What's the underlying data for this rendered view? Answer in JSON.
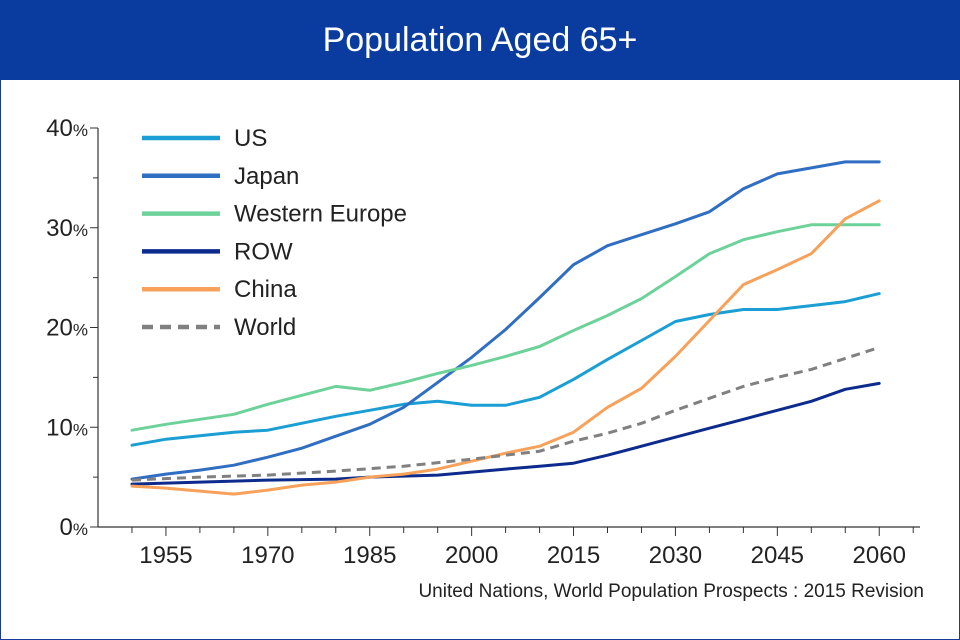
{
  "header": {
    "title": "Population Aged 65+"
  },
  "source": "United Nations, World Population Prospects : 2015 Revision",
  "chart_data": {
    "type": "line",
    "title": "Population Aged 65+",
    "xlabel": "",
    "ylabel": "",
    "xlim": [
      1945,
      2066
    ],
    "ylim": [
      0,
      40
    ],
    "x_ticks": [
      1955,
      1970,
      1985,
      2000,
      2015,
      2030,
      2045,
      2060
    ],
    "y_ticks": [
      {
        "value": 0,
        "label": "0%"
      },
      {
        "value": 10,
        "label": "10%"
      },
      {
        "value": 20,
        "label": "20%"
      },
      {
        "value": 30,
        "label": "30%"
      },
      {
        "value": 40,
        "label": "40%"
      }
    ],
    "grid": false,
    "legend": "top-left",
    "series": [
      {
        "name": "US",
        "color": "#1a9ed4",
        "dash": "solid",
        "points": [
          [
            1950,
            8.2
          ],
          [
            1955,
            8.8
          ],
          [
            1965,
            9.5
          ],
          [
            1970,
            9.7
          ],
          [
            1980,
            11.1
          ],
          [
            1985,
            11.7
          ],
          [
            1990,
            12.3
          ],
          [
            1995,
            12.6
          ],
          [
            2000,
            12.2
          ],
          [
            2005,
            12.2
          ],
          [
            2010,
            13.0
          ],
          [
            2015,
            14.8
          ],
          [
            2020,
            16.8
          ],
          [
            2025,
            18.7
          ],
          [
            2030,
            20.6
          ],
          [
            2035,
            21.3
          ],
          [
            2040,
            21.8
          ],
          [
            2045,
            21.8
          ],
          [
            2050,
            22.2
          ],
          [
            2055,
            22.6
          ],
          [
            2060,
            23.4
          ]
        ]
      },
      {
        "name": "Japan",
        "color": "#2f6ec2",
        "dash": "solid",
        "points": [
          [
            1950,
            4.8
          ],
          [
            1955,
            5.3
          ],
          [
            1960,
            5.7
          ],
          [
            1965,
            6.2
          ],
          [
            1970,
            7.0
          ],
          [
            1975,
            7.9
          ],
          [
            1980,
            9.1
          ],
          [
            1985,
            10.3
          ],
          [
            1990,
            12.0
          ],
          [
            1995,
            14.5
          ],
          [
            2000,
            17.0
          ],
          [
            2005,
            19.8
          ],
          [
            2010,
            23.0
          ],
          [
            2015,
            26.3
          ],
          [
            2020,
            28.2
          ],
          [
            2025,
            29.3
          ],
          [
            2030,
            30.4
          ],
          [
            2035,
            31.6
          ],
          [
            2040,
            33.9
          ],
          [
            2045,
            35.4
          ],
          [
            2050,
            36.0
          ],
          [
            2055,
            36.6
          ],
          [
            2060,
            36.6
          ]
        ]
      },
      {
        "name": "Western Europe",
        "color": "#6dd29a",
        "dash": "solid",
        "points": [
          [
            1950,
            9.7
          ],
          [
            1955,
            10.3
          ],
          [
            1960,
            10.8
          ],
          [
            1965,
            11.3
          ],
          [
            1970,
            12.3
          ],
          [
            1975,
            13.2
          ],
          [
            1980,
            14.1
          ],
          [
            1985,
            13.7
          ],
          [
            1990,
            14.5
          ],
          [
            1995,
            15.4
          ],
          [
            2000,
            16.2
          ],
          [
            2005,
            17.1
          ],
          [
            2010,
            18.1
          ],
          [
            2015,
            19.7
          ],
          [
            2020,
            21.2
          ],
          [
            2025,
            22.9
          ],
          [
            2030,
            25.1
          ],
          [
            2035,
            27.4
          ],
          [
            2040,
            28.8
          ],
          [
            2045,
            29.6
          ],
          [
            2050,
            30.3
          ],
          [
            2055,
            30.3
          ],
          [
            2060,
            30.3
          ]
        ]
      },
      {
        "name": "ROW",
        "color": "#0d2b8c",
        "dash": "solid",
        "points": [
          [
            1950,
            4.3
          ],
          [
            1960,
            4.5
          ],
          [
            1970,
            4.7
          ],
          [
            1980,
            4.8
          ],
          [
            1985,
            5.0
          ],
          [
            1990,
            5.1
          ],
          [
            1995,
            5.2
          ],
          [
            2000,
            5.5
          ],
          [
            2005,
            5.8
          ],
          [
            2010,
            6.1
          ],
          [
            2015,
            6.4
          ],
          [
            2020,
            7.2
          ],
          [
            2025,
            8.1
          ],
          [
            2030,
            9.0
          ],
          [
            2035,
            9.9
          ],
          [
            2040,
            10.8
          ],
          [
            2045,
            11.7
          ],
          [
            2050,
            12.6
          ],
          [
            2055,
            13.8
          ],
          [
            2060,
            14.4
          ]
        ]
      },
      {
        "name": "China",
        "color": "#f7a15a",
        "dash": "solid",
        "points": [
          [
            1950,
            4.1
          ],
          [
            1955,
            3.9
          ],
          [
            1960,
            3.6
          ],
          [
            1965,
            3.3
          ],
          [
            1970,
            3.7
          ],
          [
            1975,
            4.2
          ],
          [
            1980,
            4.5
          ],
          [
            1985,
            5.0
          ],
          [
            1990,
            5.3
          ],
          [
            1995,
            5.8
          ],
          [
            2000,
            6.6
          ],
          [
            2005,
            7.4
          ],
          [
            2010,
            8.1
          ],
          [
            2015,
            9.5
          ],
          [
            2020,
            12.0
          ],
          [
            2025,
            13.9
          ],
          [
            2030,
            17.1
          ],
          [
            2035,
            20.7
          ],
          [
            2040,
            24.3
          ],
          [
            2045,
            25.8
          ],
          [
            2050,
            27.4
          ],
          [
            2055,
            30.9
          ],
          [
            2060,
            32.7
          ]
        ]
      },
      {
        "name": "World",
        "color": "#808080",
        "dash": "dashed",
        "points": [
          [
            1950,
            4.7
          ],
          [
            1960,
            5.0
          ],
          [
            1970,
            5.2
          ],
          [
            1980,
            5.6
          ],
          [
            1990,
            6.1
          ],
          [
            2000,
            6.8
          ],
          [
            2010,
            7.6
          ],
          [
            2015,
            8.6
          ],
          [
            2020,
            9.4
          ],
          [
            2025,
            10.4
          ],
          [
            2030,
            11.7
          ],
          [
            2035,
            12.9
          ],
          [
            2040,
            14.1
          ],
          [
            2045,
            15.0
          ],
          [
            2050,
            15.8
          ],
          [
            2055,
            16.9
          ],
          [
            2060,
            18.0
          ]
        ]
      }
    ]
  }
}
